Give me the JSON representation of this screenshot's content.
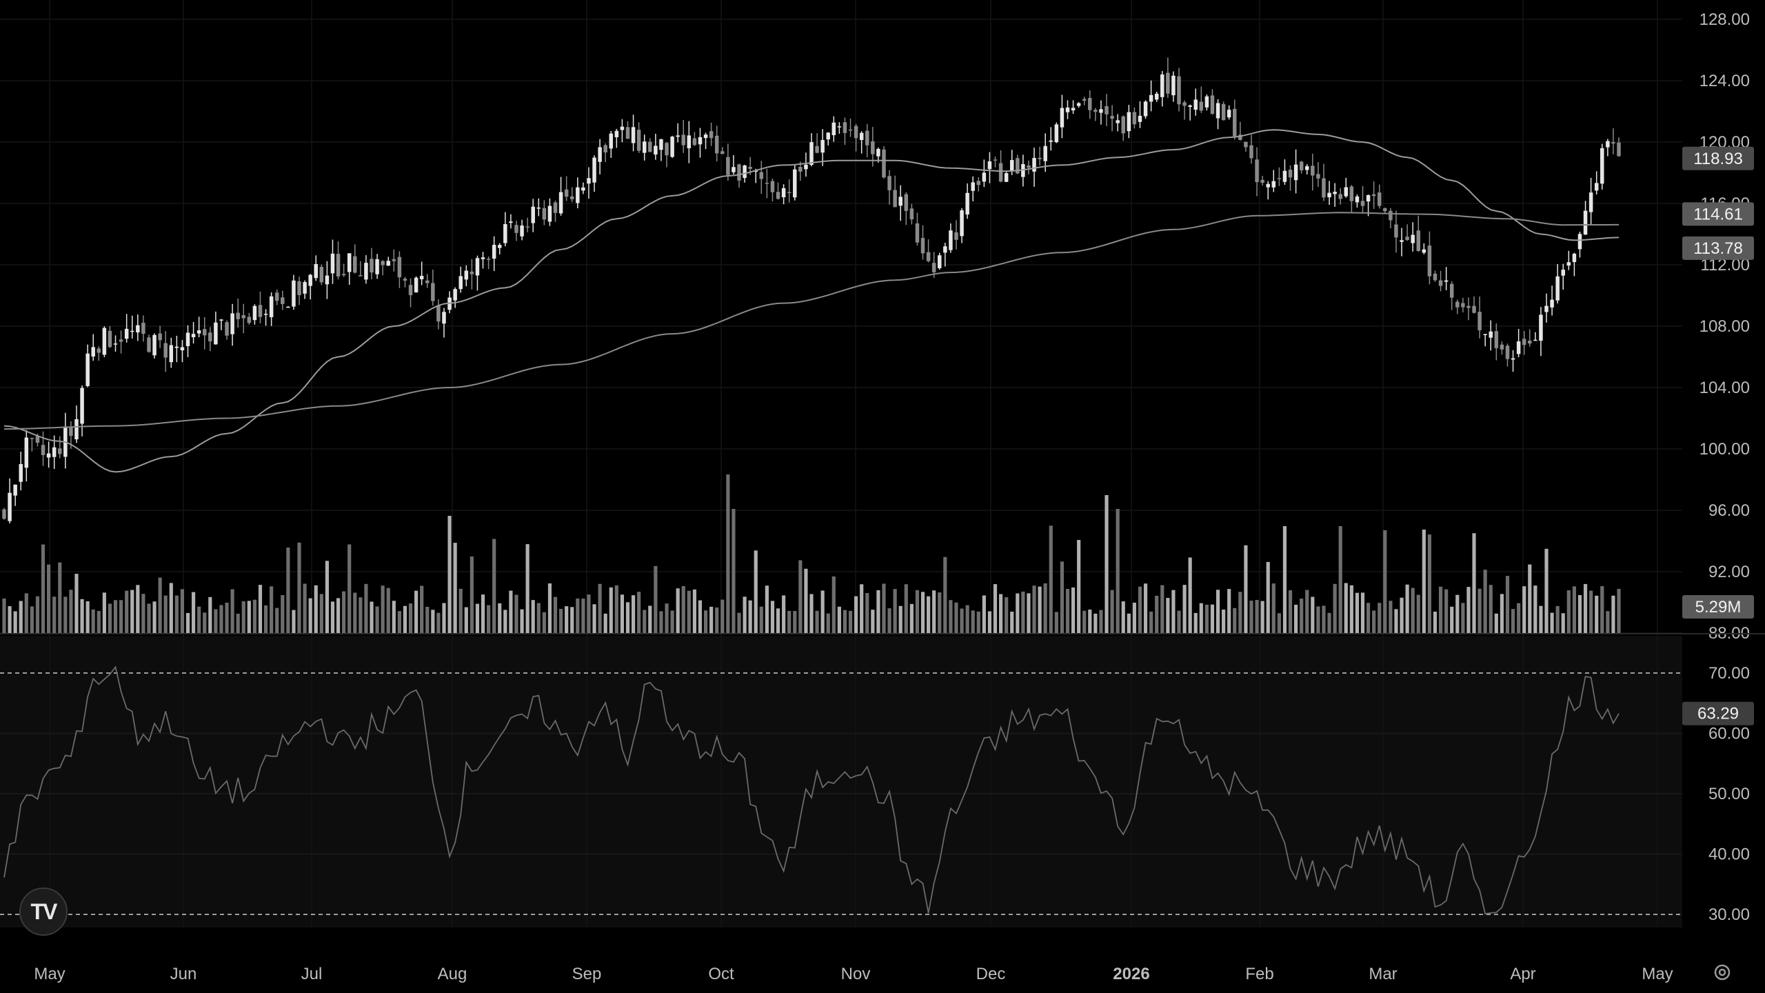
{
  "chart_data": {
    "type": "candlestick",
    "price_axis": {
      "min": 88,
      "max": 128,
      "ticks": [
        "128.00",
        "124.00",
        "120.00",
        "116.00",
        "112.00",
        "108.00",
        "104.00",
        "100.00",
        "96.00",
        "92.00",
        "88.00"
      ]
    },
    "x_axis": {
      "labels": [
        "May",
        "Jun",
        "Jul",
        "Aug",
        "Sep",
        "Oct",
        "Nov",
        "Dec",
        "2026",
        "Feb",
        "Mar",
        "Apr",
        "May"
      ],
      "bold_label": "2026"
    },
    "price_badges": [
      {
        "label": "118.93",
        "value": 118.93,
        "kind": "last"
      },
      {
        "label": "114.61",
        "value": 114.61,
        "kind": "ma"
      },
      {
        "label": "113.78",
        "value": 113.78,
        "kind": "ma"
      }
    ],
    "volume_badge": "5.29M",
    "close_anchors": [
      [
        0,
        96
      ],
      [
        4,
        100
      ],
      [
        8,
        99.5
      ],
      [
        12,
        101
      ],
      [
        16,
        107
      ],
      [
        22,
        107.5
      ],
      [
        30,
        106.5
      ],
      [
        40,
        108
      ],
      [
        50,
        110
      ],
      [
        60,
        112
      ],
      [
        68,
        112
      ],
      [
        75,
        110.5
      ],
      [
        78,
        109
      ],
      [
        82,
        111
      ],
      [
        90,
        114
      ],
      [
        100,
        116
      ],
      [
        110,
        120.5
      ],
      [
        118,
        119.5
      ],
      [
        125,
        120
      ],
      [
        132,
        118
      ],
      [
        140,
        117
      ],
      [
        148,
        120.5
      ],
      [
        155,
        120
      ],
      [
        162,
        115.5
      ],
      [
        166,
        112
      ],
      [
        170,
        114
      ],
      [
        176,
        118
      ],
      [
        184,
        118.5
      ],
      [
        192,
        123
      ],
      [
        200,
        121
      ],
      [
        208,
        124
      ],
      [
        214,
        122.5
      ],
      [
        220,
        121.5
      ],
      [
        226,
        117
      ],
      [
        232,
        118.5
      ],
      [
        238,
        116.5
      ],
      [
        246,
        116
      ],
      [
        252,
        114
      ],
      [
        256,
        112
      ],
      [
        262,
        109
      ],
      [
        266,
        108
      ],
      [
        270,
        106
      ],
      [
        274,
        107.5
      ],
      [
        278,
        110
      ],
      [
        282,
        113
      ],
      [
        286,
        118
      ],
      [
        288,
        120.5
      ],
      [
        290,
        119
      ]
    ],
    "ma_fast": {
      "last": 113.78,
      "anchors": [
        [
          0,
          101.5
        ],
        [
          10,
          100.5
        ],
        [
          20,
          98.5
        ],
        [
          30,
          99.5
        ],
        [
          40,
          101
        ],
        [
          50,
          103
        ],
        [
          60,
          106
        ],
        [
          70,
          108
        ],
        [
          80,
          109.5
        ],
        [
          90,
          110.5
        ],
        [
          100,
          113
        ],
        [
          110,
          115
        ],
        [
          120,
          116.5
        ],
        [
          130,
          117.8
        ],
        [
          140,
          118.5
        ],
        [
          150,
          118.8
        ],
        [
          160,
          118.8
        ],
        [
          170,
          118.3
        ],
        [
          180,
          118.1
        ],
        [
          190,
          118.5
        ],
        [
          200,
          119
        ],
        [
          210,
          119.5
        ],
        [
          220,
          120.3
        ],
        [
          228,
          120.8
        ],
        [
          236,
          120.5
        ],
        [
          244,
          120
        ],
        [
          252,
          119
        ],
        [
          260,
          117.5
        ],
        [
          268,
          115.5
        ],
        [
          276,
          114
        ],
        [
          282,
          113.6
        ],
        [
          290,
          113.78
        ]
      ]
    },
    "ma_slow": {
      "last": 114.61,
      "anchors": [
        [
          0,
          101.3
        ],
        [
          20,
          101.5
        ],
        [
          40,
          102
        ],
        [
          60,
          102.8
        ],
        [
          80,
          104
        ],
        [
          100,
          105.5
        ],
        [
          120,
          107.5
        ],
        [
          140,
          109.5
        ],
        [
          160,
          111
        ],
        [
          170,
          111.5
        ],
        [
          190,
          112.8
        ],
        [
          210,
          114.3
        ],
        [
          225,
          115.2
        ],
        [
          240,
          115.4
        ],
        [
          255,
          115.3
        ],
        [
          270,
          115
        ],
        [
          280,
          114.6
        ],
        [
          290,
          114.61
        ]
      ]
    },
    "rsi": {
      "levels": {
        "upper": 70,
        "lower": 30
      },
      "ticks": [
        "70.00",
        "60.00",
        "50.00",
        "40.00",
        "30.00"
      ],
      "last_label": "63.29",
      "last": 63.29,
      "anchors": [
        [
          0,
          38
        ],
        [
          4,
          48
        ],
        [
          8,
          53
        ],
        [
          12,
          56
        ],
        [
          16,
          69
        ],
        [
          20,
          70
        ],
        [
          24,
          60
        ],
        [
          30,
          62
        ],
        [
          36,
          52
        ],
        [
          44,
          50
        ],
        [
          50,
          58
        ],
        [
          56,
          62
        ],
        [
          62,
          58
        ],
        [
          68,
          62
        ],
        [
          74,
          66
        ],
        [
          80,
          42
        ],
        [
          84,
          55
        ],
        [
          90,
          60
        ],
        [
          96,
          64
        ],
        [
          102,
          58
        ],
        [
          108,
          65
        ],
        [
          112,
          55
        ],
        [
          116,
          70
        ],
        [
          120,
          60
        ],
        [
          126,
          58
        ],
        [
          132,
          55
        ],
        [
          136,
          45
        ],
        [
          140,
          38
        ],
        [
          146,
          52
        ],
        [
          152,
          55
        ],
        [
          158,
          50
        ],
        [
          162,
          38
        ],
        [
          166,
          32
        ],
        [
          170,
          46
        ],
        [
          176,
          57
        ],
        [
          182,
          62
        ],
        [
          190,
          63
        ],
        [
          196,
          52
        ],
        [
          202,
          45
        ],
        [
          206,
          60
        ],
        [
          210,
          64
        ],
        [
          214,
          55
        ],
        [
          220,
          52
        ],
        [
          226,
          48
        ],
        [
          232,
          38
        ],
        [
          238,
          36
        ],
        [
          246,
          43
        ],
        [
          252,
          40
        ],
        [
          258,
          32
        ],
        [
          262,
          40
        ],
        [
          266,
          30
        ],
        [
          270,
          34
        ],
        [
          274,
          42
        ],
        [
          278,
          55
        ],
        [
          282,
          66
        ],
        [
          284,
          68
        ],
        [
          288,
          64
        ],
        [
          290,
          63.29
        ]
      ]
    },
    "candle_count": 291
  }
}
